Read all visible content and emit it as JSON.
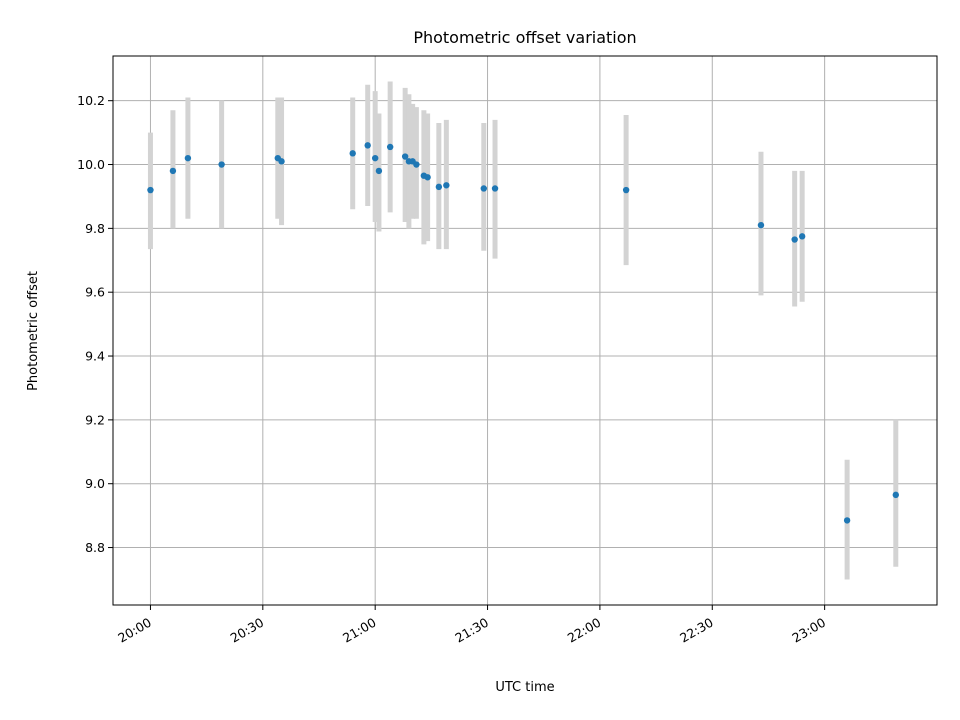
{
  "chart_data": {
    "type": "scatter",
    "title": "Photometric offset variation",
    "xlabel": "UTC time",
    "ylabel": "Photometric offset",
    "xlim": [
      "19:50",
      "23:30"
    ],
    "ylim": [
      8.62,
      10.34
    ],
    "xticks": [
      "20:00",
      "20:30",
      "21:00",
      "21:30",
      "22:00",
      "22:30",
      "23:00"
    ],
    "yticks": [
      "8.8",
      "9.0",
      "9.2",
      "9.4",
      "9.6",
      "9.8",
      "10.0",
      "10.2"
    ],
    "grid": true,
    "point_color": "#1f77b4",
    "errorbar_color": "#d3d3d3",
    "points": [
      {
        "x": "20:00",
        "y": 9.92,
        "err_low": 9.735,
        "err_high": 10.1
      },
      {
        "x": "20:06",
        "y": 9.98,
        "err_low": 9.8,
        "err_high": 10.17
      },
      {
        "x": "20:10",
        "y": 10.02,
        "err_low": 9.83,
        "err_high": 10.21
      },
      {
        "x": "20:19",
        "y": 10.0,
        "err_low": 9.8,
        "err_high": 10.2
      },
      {
        "x": "20:34",
        "y": 10.02,
        "err_low": 9.83,
        "err_high": 10.21
      },
      {
        "x": "20:35",
        "y": 10.01,
        "err_low": 9.81,
        "err_high": 10.21
      },
      {
        "x": "20:54",
        "y": 10.035,
        "err_low": 9.86,
        "err_high": 10.21
      },
      {
        "x": "20:58",
        "y": 10.06,
        "err_low": 9.87,
        "err_high": 10.25
      },
      {
        "x": "21:00",
        "y": 10.02,
        "err_low": 9.82,
        "err_high": 10.23
      },
      {
        "x": "21:01",
        "y": 9.98,
        "err_low": 9.79,
        "err_high": 10.16
      },
      {
        "x": "21:04",
        "y": 10.055,
        "err_low": 9.85,
        "err_high": 10.26
      },
      {
        "x": "21:08",
        "y": 10.025,
        "err_low": 9.82,
        "err_high": 10.24
      },
      {
        "x": "21:09",
        "y": 10.01,
        "err_low": 9.8,
        "err_high": 10.22
      },
      {
        "x": "21:10",
        "y": 10.01,
        "err_low": 9.83,
        "err_high": 10.19
      },
      {
        "x": "21:11",
        "y": 10.0,
        "err_low": 9.83,
        "err_high": 10.18
      },
      {
        "x": "21:13",
        "y": 9.965,
        "err_low": 9.75,
        "err_high": 10.17
      },
      {
        "x": "21:14",
        "y": 9.96,
        "err_low": 9.76,
        "err_high": 10.16
      },
      {
        "x": "21:17",
        "y": 9.93,
        "err_low": 9.735,
        "err_high": 10.13
      },
      {
        "x": "21:19",
        "y": 9.935,
        "err_low": 9.735,
        "err_high": 10.14
      },
      {
        "x": "21:29",
        "y": 9.925,
        "err_low": 9.73,
        "err_high": 10.13
      },
      {
        "x": "21:32",
        "y": 9.925,
        "err_low": 9.705,
        "err_high": 10.14
      },
      {
        "x": "22:07",
        "y": 9.92,
        "err_low": 9.685,
        "err_high": 10.155
      },
      {
        "x": "22:43",
        "y": 9.81,
        "err_low": 9.59,
        "err_high": 10.04
      },
      {
        "x": "22:52",
        "y": 9.765,
        "err_low": 9.555,
        "err_high": 9.98
      },
      {
        "x": "22:54",
        "y": 9.775,
        "err_low": 9.57,
        "err_high": 9.98
      },
      {
        "x": "23:06",
        "y": 8.885,
        "err_low": 8.7,
        "err_high": 9.075
      },
      {
        "x": "23:19",
        "y": 8.965,
        "err_low": 8.74,
        "err_high": 9.2
      }
    ]
  }
}
